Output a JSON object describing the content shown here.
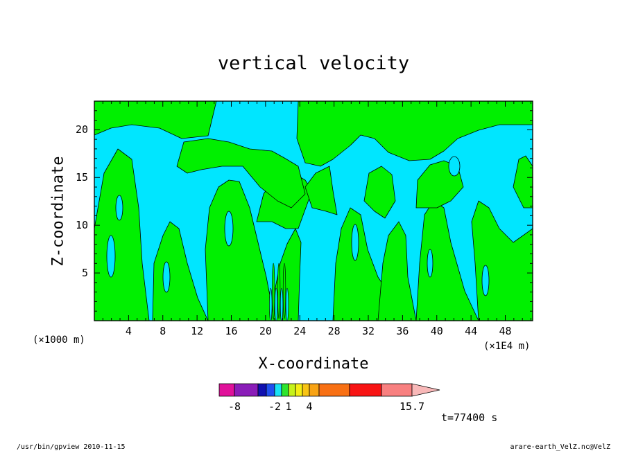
{
  "chart_data": {
    "type": "heatmap",
    "title": "vertical velocity",
    "xlabel": "X-coordinate",
    "ylabel": "Z-coordinate",
    "x_scale_label": "(×1E4 m)",
    "y_scale_label": "(×1000 m)",
    "x_ticks": [
      "4",
      "8",
      "12",
      "16",
      "20",
      "24",
      "28",
      "32",
      "36",
      "40",
      "44",
      "48"
    ],
    "y_ticks": [
      "5",
      "10",
      "15",
      "20"
    ],
    "xlim": [
      0,
      51.2
    ],
    "ylim": [
      0,
      23
    ],
    "colorbar": {
      "tick_labels": [
        "-8",
        "-2",
        "1",
        "4",
        "15.7"
      ],
      "colors": [
        "#e0119a",
        "#8a1db8",
        "#1010b0",
        "#1f4ff0",
        "#19e2f5",
        "#2ee52e",
        "#c6f21a",
        "#f4ee14",
        "#f8c414",
        "#f8a314",
        "#f87014",
        "#f81414",
        "#f88080",
        "#f8b8b8"
      ]
    },
    "field_colors": {
      "negative": "#00e6ff",
      "positive": "#00f000"
    },
    "time_label": "t=77400 s"
  },
  "footer": {
    "left": "/usr/bin/gpview   2010-11-15",
    "right": "arare-earth_VelZ.nc@VelZ"
  }
}
